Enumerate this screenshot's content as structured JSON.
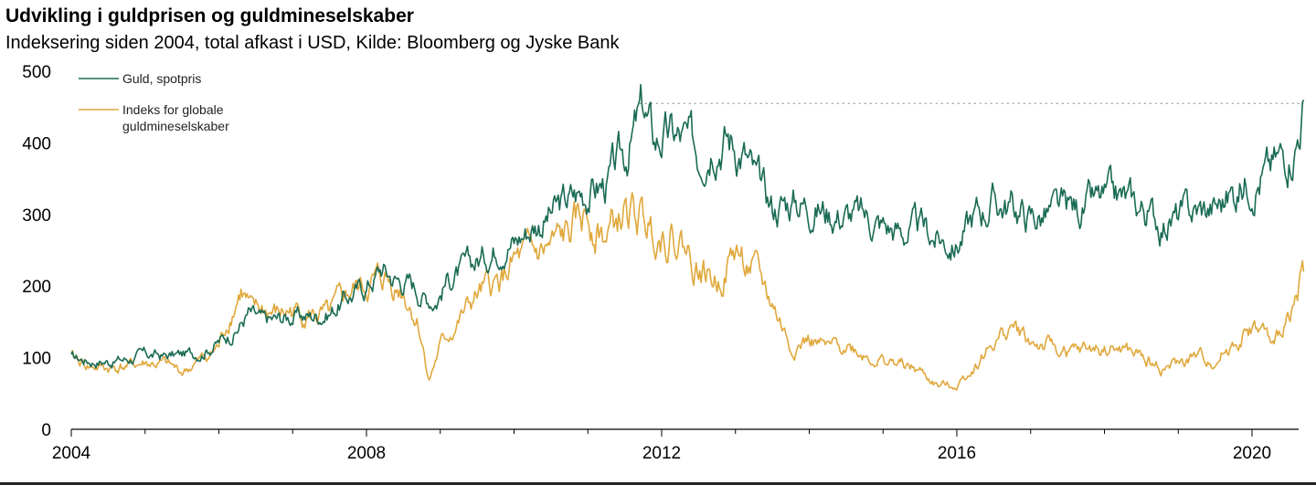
{
  "chart_data": {
    "type": "line",
    "title": "Udvikling i guldprisen og guldmineselskaber",
    "subtitle": "Indeksering siden 2004, total afkast i USD, Kilde: Bloomberg og Jyske Bank",
    "xlabel": "",
    "ylabel": "",
    "xlim": [
      2004,
      2020.8
    ],
    "ylim": [
      0,
      500
    ],
    "x_ticks": [
      "2004",
      "2008",
      "2012",
      "2016",
      "2020"
    ],
    "x_tick_values": [
      2004,
      2008,
      2012,
      2016,
      2020
    ],
    "y_ticks": [
      "0",
      "100",
      "200",
      "300",
      "400",
      "500"
    ],
    "y_tick_values": [
      0,
      100,
      200,
      300,
      400,
      500
    ],
    "reference_line": {
      "y": 455,
      "x_start": 2011.7,
      "x_end": 2020.7,
      "style": "dotted"
    },
    "legend_position": "top-left",
    "series": [
      {
        "name": "Guld, spotpris",
        "color": "#1a6b54",
        "x": [
          2004.0,
          2004.25,
          2004.5,
          2004.75,
          2005.0,
          2005.25,
          2005.5,
          2005.75,
          2006.0,
          2006.25,
          2006.4,
          2006.6,
          2006.8,
          2007.0,
          2007.25,
          2007.5,
          2007.75,
          2008.0,
          2008.2,
          2008.4,
          2008.6,
          2008.8,
          2008.95,
          2009.1,
          2009.3,
          2009.5,
          2009.7,
          2009.9,
          2010.0,
          2010.25,
          2010.5,
          2010.75,
          2011.0,
          2011.25,
          2011.5,
          2011.65,
          2011.75,
          2011.9,
          2012.0,
          2012.25,
          2012.5,
          2012.7,
          2012.9,
          2013.1,
          2013.3,
          2013.5,
          2013.75,
          2014.0,
          2014.25,
          2014.5,
          2014.75,
          2015.0,
          2015.25,
          2015.5,
          2015.75,
          2016.0,
          2016.25,
          2016.5,
          2016.75,
          2017.0,
          2017.25,
          2017.5,
          2017.75,
          2018.0,
          2018.25,
          2018.5,
          2018.75,
          2019.0,
          2019.25,
          2019.5,
          2019.75,
          2020.0,
          2020.2,
          2020.4,
          2020.6,
          2020.7
        ],
        "values": [
          100,
          96,
          95,
          98,
          104,
          102,
          104,
          108,
          122,
          140,
          162,
          150,
          153,
          158,
          158,
          163,
          185,
          200,
          225,
          210,
          205,
          185,
          183,
          210,
          220,
          235,
          250,
          270,
          262,
          285,
          300,
          320,
          335,
          342,
          380,
          420,
          445,
          400,
          410,
          405,
          385,
          420,
          410,
          390,
          340,
          310,
          320,
          315,
          305,
          300,
          295,
          285,
          275,
          280,
          265,
          258,
          300,
          318,
          310,
          295,
          300,
          305,
          310,
          318,
          320,
          310,
          290,
          295,
          305,
          310,
          330,
          355,
          360,
          380,
          410,
          460
        ]
      },
      {
        "name": "Indeks for globale guldmineselskaber",
        "color": "#e0a83c",
        "x": [
          2004.0,
          2004.25,
          2004.5,
          2004.75,
          2005.0,
          2005.25,
          2005.5,
          2005.75,
          2006.0,
          2006.15,
          2006.3,
          2006.45,
          2006.6,
          2006.8,
          2007.0,
          2007.25,
          2007.5,
          2007.75,
          2008.0,
          2008.25,
          2008.5,
          2008.7,
          2008.85,
          2009.0,
          2009.25,
          2009.5,
          2009.75,
          2010.0,
          2010.25,
          2010.5,
          2010.75,
          2011.0,
          2011.25,
          2011.5,
          2011.75,
          2012.0,
          2012.25,
          2012.5,
          2012.75,
          2013.0,
          2013.25,
          2013.5,
          2013.75,
          2014.0,
          2014.25,
          2014.5,
          2014.75,
          2015.0,
          2015.25,
          2015.5,
          2015.75,
          2016.0,
          2016.25,
          2016.5,
          2016.75,
          2017.0,
          2017.25,
          2017.5,
          2017.75,
          2018.0,
          2018.25,
          2018.5,
          2018.75,
          2019.0,
          2019.25,
          2019.5,
          2019.75,
          2020.0,
          2020.15,
          2020.3,
          2020.5,
          2020.7
        ],
        "values": [
          100,
          88,
          85,
          88,
          92,
          90,
          80,
          95,
          115,
          160,
          195,
          160,
          165,
          160,
          165,
          160,
          155,
          190,
          200,
          210,
          195,
          150,
          70,
          115,
          150,
          185,
          200,
          230,
          240,
          250,
          270,
          300,
          270,
          300,
          290,
          280,
          265,
          225,
          205,
          250,
          220,
          175,
          115,
          125,
          110,
          120,
          105,
          95,
          90,
          80,
          60,
          62,
          90,
          120,
          145,
          120,
          115,
          105,
          110,
          112,
          110,
          100,
          85,
          90,
          100,
          95,
          120,
          140,
          135,
          110,
          165,
          220
        ]
      }
    ]
  }
}
